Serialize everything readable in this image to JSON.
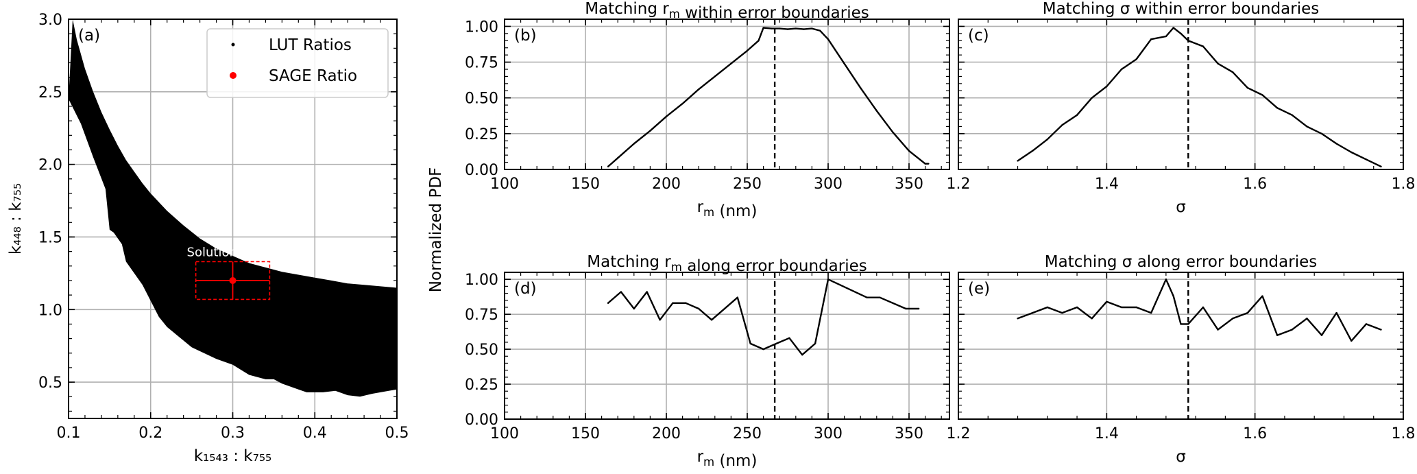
{
  "figure": {
    "shared_ylabel": "Normalized PDF"
  },
  "chart_data": [
    {
      "id": "a",
      "type": "scatter",
      "panel_label": "(a)",
      "title": "",
      "xlabel": "k₁₅₄₃ : k₇₅₅",
      "ylabel": "k₄₄₈ : k₇₅₅",
      "xlim": [
        0.1,
        0.5
      ],
      "ylim": [
        0.25,
        3.0
      ],
      "xticks": [
        "0.1",
        "0.2",
        "0.3",
        "0.4",
        "0.5"
      ],
      "yticks": [
        "0.5",
        "1.0",
        "1.5",
        "2.0",
        "2.5",
        "3.0"
      ],
      "grid": true,
      "legend_position": "top-right",
      "legend": [
        {
          "label": "LUT Ratios",
          "color": "#000000",
          "marker": "small-dot"
        },
        {
          "label": "SAGE Ratio",
          "color": "#ff0000",
          "marker": "dot"
        }
      ],
      "lut_region": {
        "color": "#000000",
        "upper": [
          [
            0.105,
            3.0
          ],
          [
            0.11,
            2.86
          ],
          [
            0.12,
            2.66
          ],
          [
            0.13,
            2.5
          ],
          [
            0.14,
            2.36
          ],
          [
            0.15,
            2.24
          ],
          [
            0.16,
            2.13
          ],
          [
            0.17,
            2.03
          ],
          [
            0.18,
            1.95
          ],
          [
            0.19,
            1.87
          ],
          [
            0.2,
            1.8
          ],
          [
            0.22,
            1.68
          ],
          [
            0.24,
            1.58
          ],
          [
            0.26,
            1.49
          ],
          [
            0.28,
            1.42
          ],
          [
            0.3,
            1.37
          ],
          [
            0.32,
            1.32
          ],
          [
            0.34,
            1.29
          ],
          [
            0.36,
            1.26
          ],
          [
            0.38,
            1.24
          ],
          [
            0.4,
            1.22
          ],
          [
            0.42,
            1.2
          ],
          [
            0.44,
            1.18
          ],
          [
            0.46,
            1.17
          ],
          [
            0.48,
            1.16
          ],
          [
            0.5,
            1.15
          ]
        ],
        "lower": [
          [
            0.1,
            2.45
          ],
          [
            0.115,
            2.28
          ],
          [
            0.13,
            2.05
          ],
          [
            0.145,
            1.83
          ],
          [
            0.15,
            1.55
          ],
          [
            0.155,
            1.53
          ],
          [
            0.165,
            1.45
          ],
          [
            0.17,
            1.33
          ],
          [
            0.19,
            1.17
          ],
          [
            0.21,
            0.95
          ],
          [
            0.22,
            0.88
          ],
          [
            0.25,
            0.74
          ],
          [
            0.28,
            0.66
          ],
          [
            0.3,
            0.62
          ],
          [
            0.32,
            0.55
          ],
          [
            0.34,
            0.52
          ],
          [
            0.35,
            0.52
          ],
          [
            0.36,
            0.49
          ],
          [
            0.38,
            0.45
          ],
          [
            0.39,
            0.43
          ],
          [
            0.41,
            0.43
          ],
          [
            0.425,
            0.44
          ],
          [
            0.44,
            0.41
          ],
          [
            0.455,
            0.4
          ],
          [
            0.47,
            0.42
          ],
          [
            0.49,
            0.44
          ],
          [
            0.5,
            0.45
          ]
        ]
      },
      "sage_point": {
        "x": 0.3,
        "y": 1.2,
        "xerr": 0.045,
        "yerr": 0.13,
        "color": "#ff0000"
      },
      "annotation": "Solution Space"
    },
    {
      "id": "b",
      "type": "line",
      "panel_label": "(b)",
      "title": "Matching r_m within error boundaries",
      "xlabel": "r_m (nm)",
      "ylabel": "",
      "xlim": [
        100,
        375
      ],
      "ylim": [
        0,
        1.05
      ],
      "xticks": [
        100,
        150,
        200,
        250,
        300,
        350
      ],
      "yticks": [
        "0.00",
        "0.25",
        "0.50",
        "0.75",
        "1.00"
      ],
      "grid": true,
      "vline": 267,
      "x": [
        164,
        170,
        180,
        190,
        200,
        210,
        220,
        230,
        240,
        250,
        257,
        260,
        265,
        270,
        275,
        280,
        285,
        290,
        295,
        300,
        310,
        320,
        330,
        340,
        350,
        360,
        362
      ],
      "y": [
        0.02,
        0.08,
        0.18,
        0.27,
        0.37,
        0.46,
        0.56,
        0.65,
        0.74,
        0.83,
        0.9,
        0.99,
        0.985,
        0.985,
        0.98,
        0.985,
        0.98,
        0.985,
        0.97,
        0.91,
        0.74,
        0.57,
        0.41,
        0.26,
        0.13,
        0.04,
        0.04
      ]
    },
    {
      "id": "c",
      "type": "line",
      "panel_label": "(c)",
      "title": "Matching σ within error boundaries",
      "xlabel": "σ",
      "ylabel": "",
      "xlim": [
        1.2,
        1.8
      ],
      "ylim": [
        0,
        1.05
      ],
      "xticks": [
        "1.2",
        "1.4",
        "1.6",
        "1.8"
      ],
      "yticks": [
        "0.00",
        "0.25",
        "0.50",
        "0.75",
        "1.00"
      ],
      "grid": true,
      "vline": 1.51,
      "x": [
        1.28,
        1.3,
        1.32,
        1.34,
        1.36,
        1.38,
        1.4,
        1.42,
        1.44,
        1.46,
        1.48,
        1.49,
        1.5,
        1.51,
        1.53,
        1.55,
        1.57,
        1.59,
        1.61,
        1.63,
        1.65,
        1.67,
        1.69,
        1.71,
        1.73,
        1.75,
        1.77
      ],
      "y": [
        0.06,
        0.13,
        0.21,
        0.31,
        0.38,
        0.5,
        0.58,
        0.7,
        0.77,
        0.91,
        0.93,
        0.99,
        0.95,
        0.9,
        0.86,
        0.74,
        0.68,
        0.57,
        0.52,
        0.43,
        0.38,
        0.3,
        0.25,
        0.18,
        0.12,
        0.07,
        0.02
      ]
    },
    {
      "id": "d",
      "type": "line",
      "panel_label": "(d)",
      "title": "Matching r_m along error boundaries",
      "xlabel": "r_m (nm)",
      "ylabel": "",
      "xlim": [
        100,
        375
      ],
      "ylim": [
        0,
        1.05
      ],
      "xticks": [
        100,
        150,
        200,
        250,
        300,
        350
      ],
      "yticks": [
        "0.00",
        "0.25",
        "0.50",
        "0.75",
        "1.00"
      ],
      "grid": true,
      "vline": 267,
      "x": [
        164,
        172,
        180,
        188,
        196,
        204,
        212,
        220,
        228,
        244,
        252,
        260,
        268,
        276,
        284,
        292,
        300,
        324,
        332,
        348,
        356
      ],
      "y": [
        0.83,
        0.91,
        0.79,
        0.91,
        0.71,
        0.83,
        0.83,
        0.79,
        0.71,
        0.87,
        0.54,
        0.5,
        0.54,
        0.58,
        0.46,
        0.54,
        1.0,
        0.87,
        0.87,
        0.79,
        0.79
      ]
    },
    {
      "id": "e",
      "type": "line",
      "panel_label": "(e)",
      "title": "Matching σ along error boundaries",
      "xlabel": "σ",
      "ylabel": "",
      "xlim": [
        1.2,
        1.8
      ],
      "ylim": [
        0,
        1.05
      ],
      "xticks": [
        "1.2",
        "1.4",
        "1.6",
        "1.8"
      ],
      "yticks": [
        "0.00",
        "0.25",
        "0.50",
        "0.75",
        "1.00"
      ],
      "grid": true,
      "vline": 1.51,
      "x": [
        1.28,
        1.3,
        1.32,
        1.34,
        1.36,
        1.38,
        1.4,
        1.42,
        1.44,
        1.46,
        1.48,
        1.49,
        1.5,
        1.51,
        1.53,
        1.55,
        1.57,
        1.59,
        1.61,
        1.63,
        1.65,
        1.67,
        1.69,
        1.71,
        1.73,
        1.75,
        1.77
      ],
      "y": [
        0.72,
        0.76,
        0.8,
        0.76,
        0.8,
        0.72,
        0.84,
        0.8,
        0.8,
        0.76,
        1.0,
        0.88,
        0.68,
        0.68,
        0.8,
        0.64,
        0.72,
        0.76,
        0.88,
        0.6,
        0.64,
        0.72,
        0.6,
        0.76,
        0.56,
        0.68,
        0.64
      ]
    }
  ]
}
